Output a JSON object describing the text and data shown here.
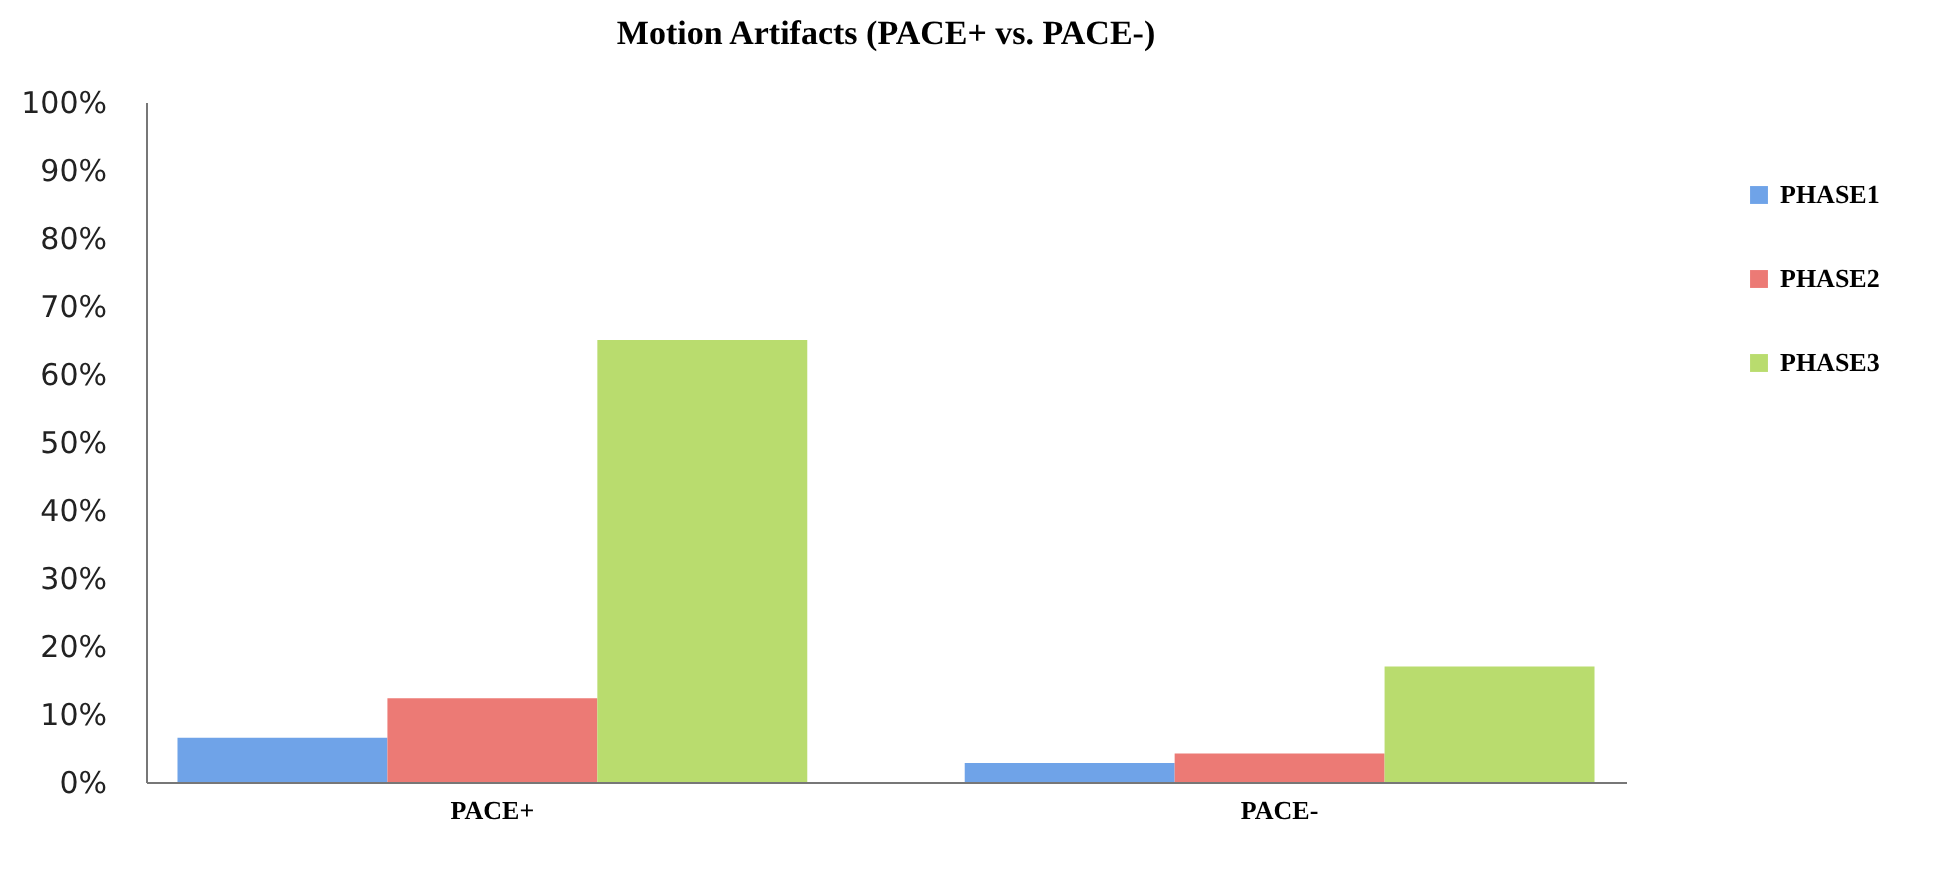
{
  "chart_data": {
    "type": "bar",
    "title": "Motion Artifacts (PACE+ vs. PACE-)",
    "categories": [
      "PACE+",
      "PACE-"
    ],
    "series": [
      {
        "name": "PHASE1",
        "color": "#6fa3e8",
        "values": [
          6.5,
          2.8
        ]
      },
      {
        "name": "PHASE2",
        "color": "#ec7a75",
        "values": [
          12.3,
          4.2
        ]
      },
      {
        "name": "PHASE3",
        "color": "#b9dc6e",
        "values": [
          65,
          17
        ]
      }
    ],
    "ylim": [
      0,
      100
    ],
    "yticks": [
      {
        "value": 0,
        "label": "0%"
      },
      {
        "value": 10,
        "label": "10%"
      },
      {
        "value": 20,
        "label": "20%"
      },
      {
        "value": 30,
        "label": "30%"
      },
      {
        "value": 40,
        "label": "40%"
      },
      {
        "value": 50,
        "label": "50%"
      },
      {
        "value": 60,
        "label": "60%"
      },
      {
        "value": 70,
        "label": "70%"
      },
      {
        "value": 80,
        "label": "80%"
      },
      {
        "value": 90,
        "label": "90%"
      },
      {
        "value": 100,
        "label": "100%"
      }
    ],
    "grid": false,
    "legend": "right"
  }
}
